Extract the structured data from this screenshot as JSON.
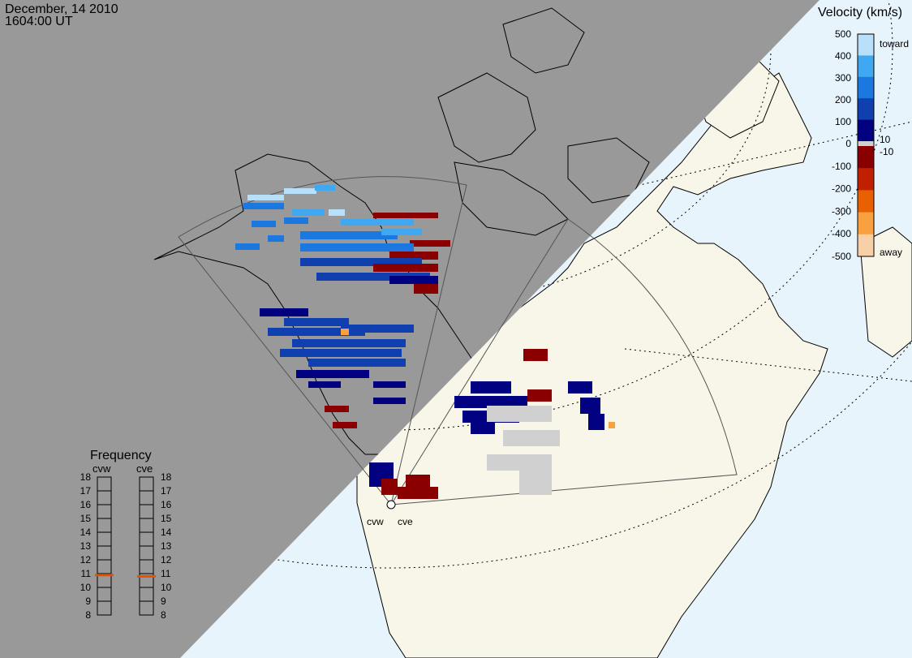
{
  "header": {
    "date": "December, 14 2010",
    "time": "1604:00 UT"
  },
  "colorbar": {
    "title": "Velocity (km/s)",
    "ticks": [
      "500",
      "400",
      "300",
      "200",
      "100",
      "0",
      "-100",
      "-200",
      "-300",
      "-400",
      "-500"
    ],
    "tick_values": [
      500,
      400,
      300,
      200,
      100,
      0,
      -100,
      -200,
      -300,
      -400,
      -500
    ],
    "inner_labels": {
      "toward": "toward",
      "away": "away",
      "plus10": "10",
      "minus10": "-10"
    },
    "colors": [
      "#f8d0a8",
      "#f9a040",
      "#e86000",
      "#c02000",
      "#8a0000",
      "#d0d0d0",
      "#000080",
      "#1040b0",
      "#1a78e0",
      "#40a8f0",
      "#b8e0fa"
    ]
  },
  "frequency": {
    "title": "Frequency",
    "col_labels": [
      "cvw",
      "cve"
    ],
    "scale": [
      "18",
      "17",
      "16",
      "15",
      "14",
      "13",
      "12",
      "11",
      "10",
      "9",
      "8"
    ],
    "scale_values": [
      18,
      17,
      16,
      15,
      14,
      13,
      12,
      11,
      10,
      9,
      8
    ],
    "cvw_value": 10.9,
    "cve_value": 10.8,
    "marker_color": "#e85000"
  },
  "radars": [
    {
      "code": "cvw",
      "label": "cvw"
    },
    {
      "code": "cve",
      "label": "cve"
    }
  ],
  "map": {
    "night_color": "#999999",
    "ocean_color": "#e8f4fc",
    "land_color": "#f8f6e8"
  }
}
